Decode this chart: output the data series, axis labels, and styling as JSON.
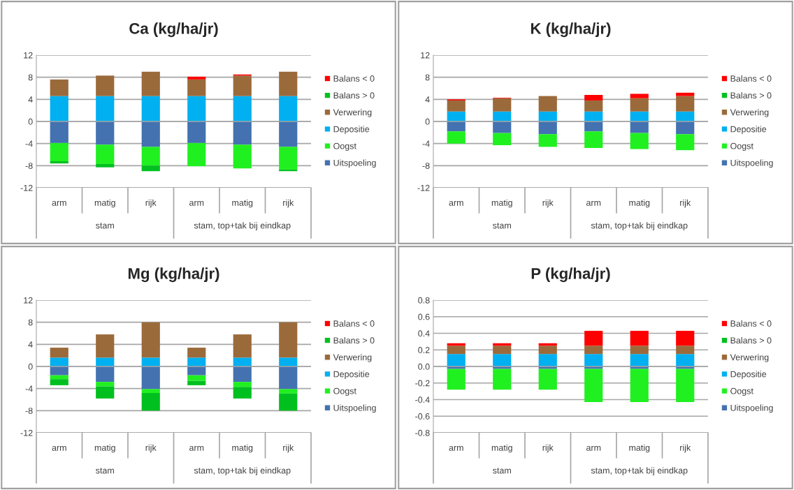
{
  "chart_data": [
    {
      "type": "bar",
      "title": "Ca (kg/ha/jr)",
      "stacked": true,
      "categories": [
        "arm",
        "matig",
        "rijk",
        "arm",
        "matig",
        "rijk"
      ],
      "annotations": [
        "stam",
        "stam, top+tak bij eindkap"
      ],
      "ylim": [
        -12,
        12
      ],
      "yticks": [
        -12,
        -8,
        -4,
        0,
        4,
        8,
        12
      ],
      "grid": "y",
      "legend": "right",
      "series": [
        {
          "name": "Uitspoeling",
          "color": "#4472b0",
          "values": [
            -3.9,
            -4.2,
            -4.6,
            -3.9,
            -4.2,
            -4.6
          ]
        },
        {
          "name": "Oogst",
          "color": "#20f020",
          "values": [
            -3.3,
            -3.5,
            -3.4,
            -4.2,
            -4.3,
            -4.1
          ]
        },
        {
          "name": "Depositie",
          "color": "#00b0f0",
          "values": [
            4.6,
            4.6,
            4.6,
            4.6,
            4.6,
            4.6
          ]
        },
        {
          "name": "Verwering",
          "color": "#9b6a3b",
          "values": [
            3.0,
            3.7,
            4.4,
            3.0,
            3.7,
            4.4
          ]
        },
        {
          "name": "Balans > 0",
          "color": "#00c020",
          "values": [
            -0.4,
            -0.6,
            -1.0,
            0,
            0,
            -0.3
          ]
        },
        {
          "name": "Balans < 0",
          "color": "#ff0000",
          "values": [
            0,
            0,
            0,
            0.5,
            0.2,
            0
          ]
        }
      ]
    },
    {
      "type": "bar",
      "title": "K (kg/ha/jr)",
      "stacked": true,
      "categories": [
        "arm",
        "matig",
        "rijk",
        "arm",
        "matig",
        "rijk"
      ],
      "annotations": [
        "stam",
        "stam, top+tak bij eindkap"
      ],
      "ylim": [
        -12,
        12
      ],
      "yticks": [
        -12,
        -8,
        -4,
        0,
        4,
        8,
        12
      ],
      "grid": "y",
      "legend": "right",
      "series": [
        {
          "name": "Uitspoeling",
          "color": "#4472b0",
          "values": [
            -1.8,
            -2.1,
            -2.3,
            -1.8,
            -2.1,
            -2.3
          ]
        },
        {
          "name": "Oogst",
          "color": "#20f020",
          "values": [
            -2.2,
            -2.2,
            -2.3,
            -3.0,
            -2.9,
            -2.9
          ]
        },
        {
          "name": "Depositie",
          "color": "#00b0f0",
          "values": [
            1.8,
            1.8,
            1.8,
            1.8,
            1.8,
            1.8
          ]
        },
        {
          "name": "Verwering",
          "color": "#9b6a3b",
          "values": [
            2.0,
            2.4,
            2.8,
            2.0,
            2.4,
            2.8
          ]
        },
        {
          "name": "Balans > 0",
          "color": "#00c020",
          "values": [
            0,
            0,
            0,
            0,
            0,
            0
          ]
        },
        {
          "name": "Balans < 0",
          "color": "#ff0000",
          "values": [
            0.2,
            0.1,
            0,
            1.0,
            0.8,
            0.6
          ]
        }
      ]
    },
    {
      "type": "bar",
      "title": "Mg (kg/ha/jr)",
      "stacked": true,
      "categories": [
        "arm",
        "matig",
        "rijk",
        "arm",
        "matig",
        "rijk"
      ],
      "annotations": [
        "stam",
        "stam, top+tak bij eindkap"
      ],
      "ylim": [
        -12,
        12
      ],
      "yticks": [
        -12,
        -8,
        -4,
        0,
        4,
        8,
        12
      ],
      "grid": "y",
      "legend": "right",
      "series": [
        {
          "name": "Uitspoeling",
          "color": "#4472b0",
          "values": [
            -1.6,
            -2.8,
            -4.1,
            -1.6,
            -2.8,
            -4.1
          ]
        },
        {
          "name": "Oogst",
          "color": "#20f020",
          "values": [
            -0.7,
            -0.8,
            -0.7,
            -1.0,
            -0.9,
            -0.8
          ]
        },
        {
          "name": "Depositie",
          "color": "#00b0f0",
          "values": [
            1.6,
            1.6,
            1.6,
            1.6,
            1.6,
            1.6
          ]
        },
        {
          "name": "Verwering",
          "color": "#9b6a3b",
          "values": [
            1.8,
            4.2,
            6.4,
            1.8,
            4.2,
            6.4
          ]
        },
        {
          "name": "Balans > 0",
          "color": "#00c020",
          "values": [
            -1.1,
            -2.2,
            -3.2,
            -0.8,
            -2.1,
            -3.1
          ]
        },
        {
          "name": "Balans < 0",
          "color": "#ff0000",
          "values": [
            0,
            0,
            0,
            0,
            0,
            0
          ]
        }
      ]
    },
    {
      "type": "bar",
      "title": "P (kg/ha/jr)",
      "stacked": true,
      "categories": [
        "arm",
        "matig",
        "rijk",
        "arm",
        "matig",
        "rijk"
      ],
      "annotations": [
        "stam",
        "stam, top+tak bij eindkap"
      ],
      "ylim": [
        -0.8,
        0.8
      ],
      "yticks": [
        {
          "value": -0.8,
          "label": "-0.8"
        },
        {
          "value": -0.6,
          "label": "-0.6"
        },
        {
          "value": -0.4,
          "label": "-0.4"
        },
        {
          "value": -0.2,
          "label": "-0.2"
        },
        {
          "value": 0,
          "label": "0.0"
        },
        {
          "value": 0.2,
          "label": "0.2"
        },
        {
          "value": 0.4,
          "label": "0.4"
        },
        {
          "value": 0.6,
          "label": "0.6"
        },
        {
          "value": 0.8,
          "label": "0.8"
        }
      ],
      "grid": "y",
      "legend": "right",
      "series": [
        {
          "name": "Uitspoeling",
          "color": "#4472b0",
          "values": [
            -0.03,
            -0.03,
            -0.03,
            -0.03,
            -0.03,
            -0.03
          ]
        },
        {
          "name": "Oogst",
          "color": "#20f020",
          "values": [
            -0.25,
            -0.25,
            -0.25,
            -0.4,
            -0.4,
            -0.4
          ]
        },
        {
          "name": "Depositie",
          "color": "#00b0f0",
          "values": [
            0.15,
            0.15,
            0.15,
            0.15,
            0.15,
            0.15
          ]
        },
        {
          "name": "Verwering",
          "color": "#9b6a3b",
          "values": [
            0.1,
            0.1,
            0.1,
            0.1,
            0.1,
            0.1
          ]
        },
        {
          "name": "Balans > 0",
          "color": "#00c020",
          "values": [
            0,
            0,
            0,
            0,
            0,
            0
          ]
        },
        {
          "name": "Balans < 0",
          "color": "#ff0000",
          "values": [
            0.03,
            0.03,
            0.03,
            0.18,
            0.18,
            0.18
          ]
        }
      ]
    }
  ]
}
